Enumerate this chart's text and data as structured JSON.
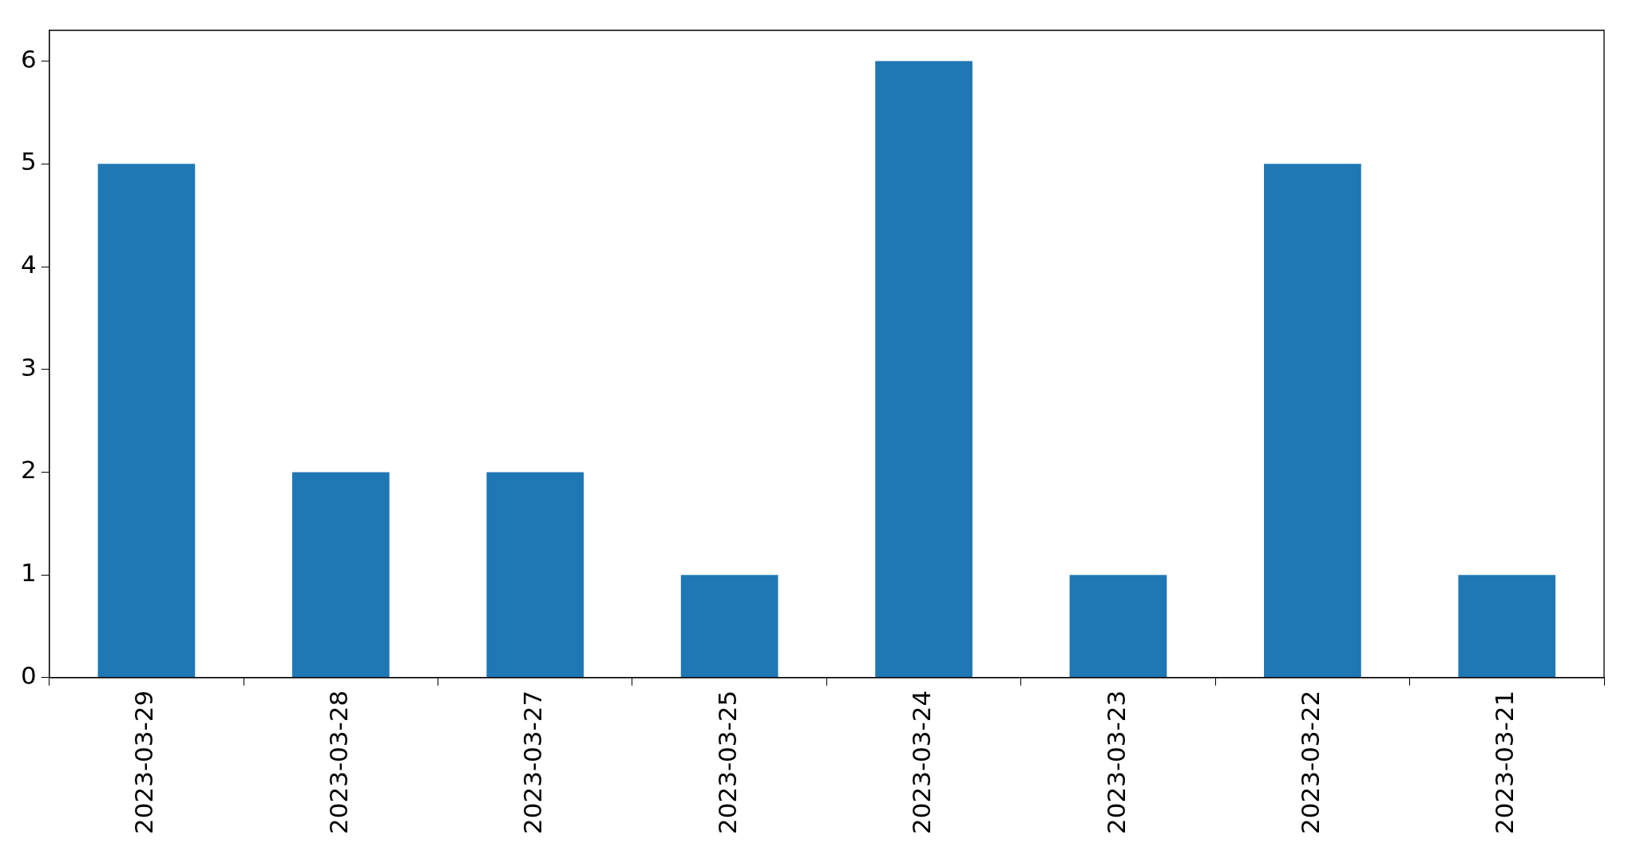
{
  "chart_data": {
    "type": "bar",
    "categories": [
      "2023-03-29",
      "2023-03-28",
      "2023-03-27",
      "2023-03-25",
      "2023-03-24",
      "2023-03-23",
      "2023-03-22",
      "2023-03-21"
    ],
    "values": [
      5,
      2,
      2,
      1,
      6,
      1,
      5,
      1
    ],
    "color": "#1f77b4",
    "ylim": [
      0,
      6.3
    ],
    "yticks": [
      0,
      1,
      2,
      3,
      4,
      5,
      6
    ]
  }
}
